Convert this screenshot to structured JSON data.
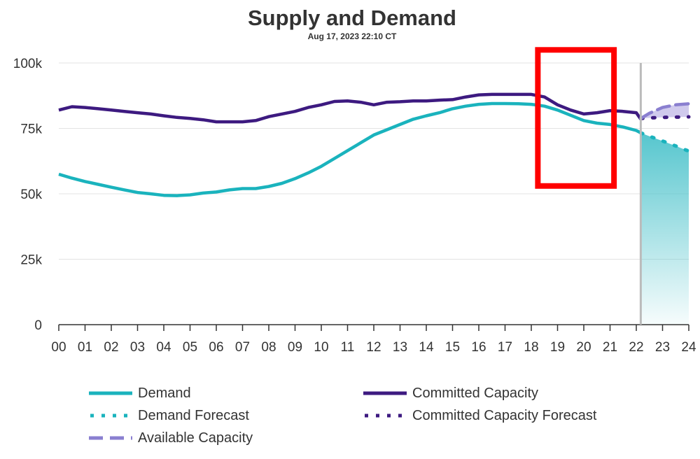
{
  "chart_data": {
    "type": "line",
    "title": "Supply and Demand",
    "subtitle": "Aug 17, 2023 22:10 CT",
    "xlabel": "",
    "ylabel": "",
    "xlim": [
      0,
      24
    ],
    "ylim": [
      0,
      100000
    ],
    "x_tick_labels": [
      "00",
      "01",
      "02",
      "03",
      "04",
      "05",
      "06",
      "07",
      "08",
      "09",
      "10",
      "11",
      "12",
      "13",
      "14",
      "15",
      "16",
      "17",
      "18",
      "19",
      "20",
      "21",
      "22",
      "23",
      "24"
    ],
    "y_ticks": [
      {
        "value": 0,
        "label": "0"
      },
      {
        "value": 25000,
        "label": "25k"
      },
      {
        "value": 50000,
        "label": "50k"
      },
      {
        "value": 75000,
        "label": "75k"
      },
      {
        "value": 100000,
        "label": "100k"
      }
    ],
    "grid": true,
    "current_time_marker": 22.17,
    "highlight_box": {
      "x_start": 18.25,
      "x_end": 21.15,
      "y_start": 53000,
      "y_end": 105000
    },
    "colors": {
      "demand": "#1ab3bd",
      "committed": "#3d1a80",
      "available": "#8a7fd0",
      "available_fill": "#c8c1ea",
      "demand_fill": "#6bcfd6",
      "marker": "#bbbbbb",
      "highlight": "#ff0000",
      "grid": "#e3e3e3",
      "axis": "#333333"
    },
    "series": [
      {
        "name": "Demand",
        "style": "solid",
        "x": [
          0,
          0.5,
          1,
          1.5,
          2,
          2.5,
          3,
          3.5,
          4,
          4.5,
          5,
          5.5,
          6,
          6.5,
          7,
          7.5,
          8,
          8.5,
          9,
          9.5,
          10,
          10.5,
          11,
          11.5,
          12,
          12.5,
          13,
          13.5,
          14,
          14.5,
          15,
          15.5,
          16,
          16.5,
          17,
          17.5,
          18,
          18.5,
          19,
          19.5,
          20,
          20.5,
          21,
          21.5,
          22,
          22.17
        ],
        "values": [
          57500,
          56000,
          54700,
          53600,
          52500,
          51500,
          50500,
          50000,
          49400,
          49300,
          49600,
          50300,
          50700,
          51500,
          52000,
          52000,
          52800,
          54000,
          55800,
          58000,
          60500,
          63500,
          66500,
          69500,
          72500,
          74500,
          76500,
          78500,
          79800,
          81000,
          82500,
          83500,
          84200,
          84500,
          84500,
          84400,
          84200,
          83500,
          82000,
          80000,
          78000,
          77000,
          76500,
          75500,
          74200,
          73300
        ]
      },
      {
        "name": "Committed Capacity",
        "style": "solid",
        "x": [
          0,
          0.5,
          1,
          1.5,
          2,
          2.5,
          3,
          3.5,
          4,
          4.5,
          5,
          5.5,
          6,
          6.5,
          7,
          7.5,
          8,
          8.5,
          9,
          9.5,
          10,
          10.5,
          11,
          11.5,
          12,
          12.5,
          13,
          13.5,
          14,
          14.5,
          15,
          15.5,
          16,
          16.5,
          17,
          17.5,
          18,
          18.5,
          19,
          19.5,
          20,
          20.5,
          21,
          21.5,
          22,
          22.17
        ],
        "values": [
          82000,
          83300,
          83000,
          82500,
          82000,
          81500,
          81000,
          80500,
          79800,
          79200,
          78800,
          78300,
          77500,
          77500,
          77500,
          78000,
          79500,
          80500,
          81500,
          83000,
          84000,
          85300,
          85500,
          85000,
          84000,
          85000,
          85200,
          85500,
          85500,
          85800,
          86000,
          87000,
          87800,
          88000,
          88000,
          88000,
          88000,
          87000,
          84000,
          82000,
          80500,
          81000,
          81800,
          81500,
          81000,
          78500
        ]
      },
      {
        "name": "Demand Forecast",
        "style": "dotted",
        "x": [
          22.17,
          22.5,
          23,
          23.5,
          24
        ],
        "values": [
          73300,
          72000,
          70200,
          68300,
          66300
        ]
      },
      {
        "name": "Committed Capacity Forecast",
        "style": "dotted",
        "x": [
          22.17,
          22.5,
          23,
          23.5,
          24
        ],
        "values": [
          78800,
          79000,
          79200,
          79300,
          79400
        ]
      },
      {
        "name": "Available Capacity",
        "style": "dashed",
        "x": [
          22.17,
          22.5,
          23,
          23.5,
          24
        ],
        "values": [
          78800,
          80800,
          83000,
          84000,
          84400
        ]
      }
    ]
  },
  "legend": [
    {
      "label": "Demand"
    },
    {
      "label": "Committed Capacity"
    },
    {
      "label": "Demand Forecast"
    },
    {
      "label": "Committed Capacity Forecast"
    },
    {
      "label": "Available Capacity"
    }
  ]
}
